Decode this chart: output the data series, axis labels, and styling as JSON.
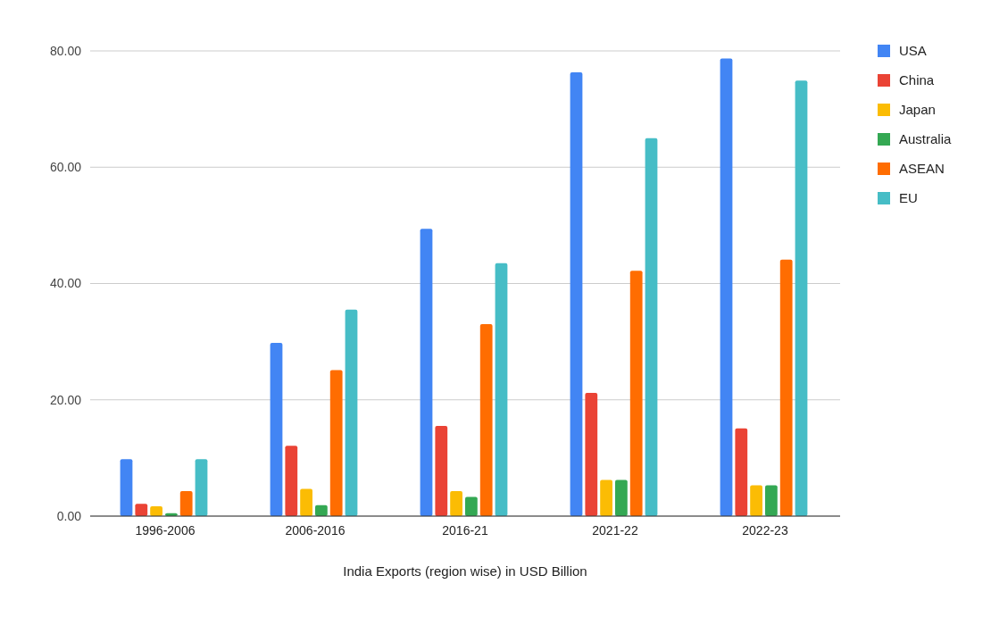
{
  "chart_data": {
    "type": "bar",
    "xlabel": "India Exports (region wise) in USD Billion",
    "categories": [
      "1996-2006",
      "2006-2016",
      "2016-21",
      "2021-22",
      "2022-23"
    ],
    "series": [
      {
        "name": "USA",
        "color": "#4285f4",
        "values": [
          9.8,
          29.8,
          49.4,
          76.3,
          78.7
        ]
      },
      {
        "name": "China",
        "color": "#ea4335",
        "values": [
          2.1,
          12.1,
          15.5,
          21.2,
          15.1
        ]
      },
      {
        "name": "Japan",
        "color": "#fbbc04",
        "values": [
          1.7,
          4.7,
          4.3,
          6.2,
          5.3
        ]
      },
      {
        "name": "Australia",
        "color": "#34a853",
        "values": [
          0.5,
          1.9,
          3.3,
          6.2,
          5.3
        ]
      },
      {
        "name": "ASEAN",
        "color": "#ff6d01",
        "values": [
          4.3,
          25.1,
          33.0,
          42.2,
          44.1
        ]
      },
      {
        "name": "EU",
        "color": "#46bdc6",
        "values": [
          9.8,
          35.5,
          43.5,
          65.0,
          74.9
        ]
      }
    ],
    "ylim": [
      0,
      80
    ],
    "yticks": [
      {
        "value": 0,
        "label": "0.00"
      },
      {
        "value": 20,
        "label": "20.00"
      },
      {
        "value": 40,
        "label": "40.00"
      },
      {
        "value": 60,
        "label": "60.00"
      },
      {
        "value": 80,
        "label": "80.00"
      }
    ],
    "grid": "y",
    "legend": "top right"
  }
}
